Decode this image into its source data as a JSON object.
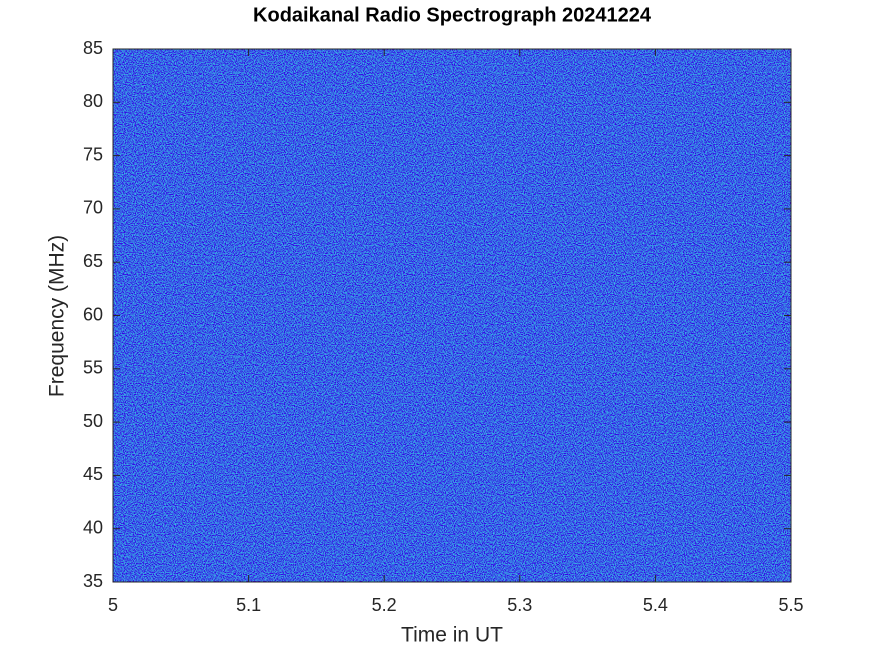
{
  "chart_data": {
    "type": "spectrogram",
    "title": "Kodaikanal Radio Spectrograph  20241224",
    "x_label": "Time in UT",
    "y_label": "Frequency (MHz)",
    "xlim": [
      5,
      5.5
    ],
    "xticks": [
      5,
      5.1,
      5.2,
      5.3,
      5.4,
      5.5
    ],
    "ylim": [
      35,
      85
    ],
    "yticks": [
      35,
      40,
      45,
      50,
      55,
      60,
      65,
      70,
      75,
      80,
      85
    ]
  }
}
